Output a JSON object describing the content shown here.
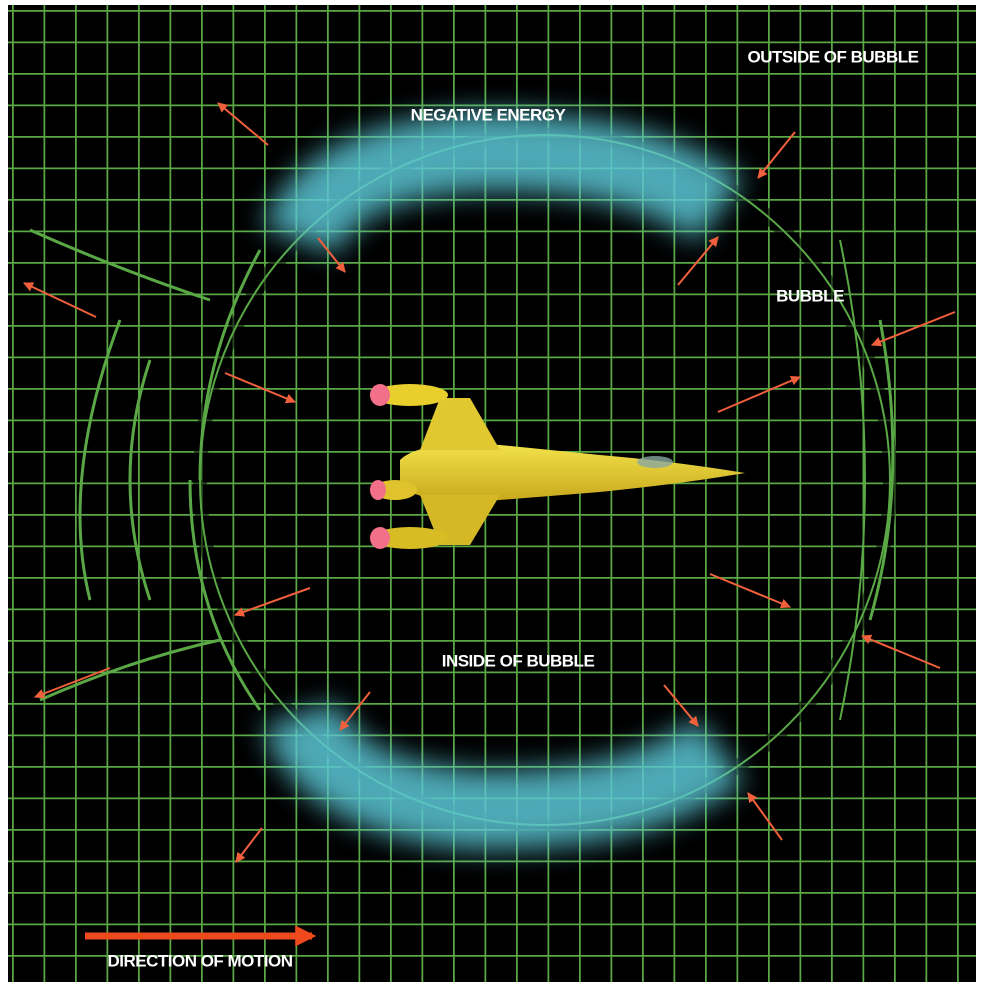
{
  "labels": {
    "outside": "OUTSIDE  OF BUBBLE",
    "negative_energy": "NEGATIVE ENERGY",
    "bubble": "BUBBLE",
    "inside": "INSIDE OF BUBBLE",
    "direction": "DIRECTION OF MOTION"
  }
}
